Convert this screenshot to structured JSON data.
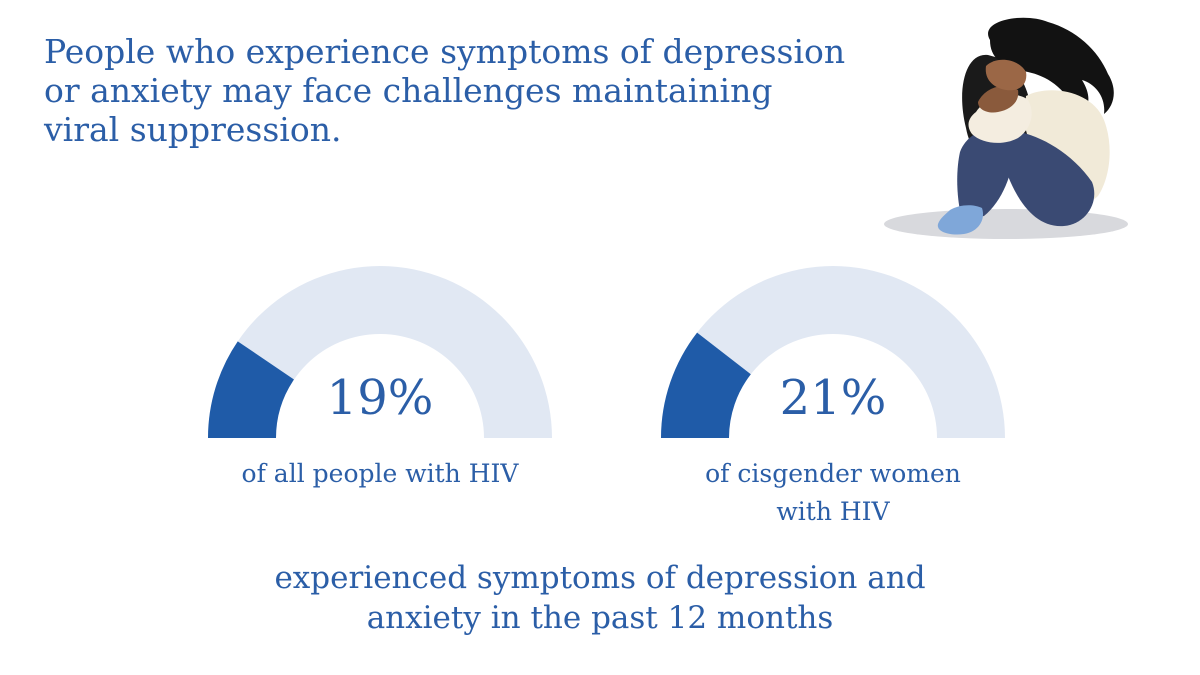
{
  "headline": [
    "People who experience symptoms of depression",
    "or anxiety may face challenges maintaining",
    "viral suppression."
  ],
  "chart_data": {
    "type": "gauge",
    "series": [
      {
        "value_label": "19%",
        "value": 19,
        "caption": [
          "of all people with HIV"
        ]
      },
      {
        "value_label": "21%",
        "value": 21,
        "caption": [
          "of cisgender women",
          "with HIV"
        ]
      }
    ],
    "range": [
      0,
      100
    ],
    "footer": [
      "experienced symptoms of depression and",
      "anxiety in the past 12 months"
    ]
  },
  "colors": {
    "text": "#2b5ea7",
    "gauge_fill": "#1f5ba8",
    "gauge_track": "#e1e8f3"
  },
  "illustration": {
    "icon": "sad-person-hugging-knees-icon"
  }
}
